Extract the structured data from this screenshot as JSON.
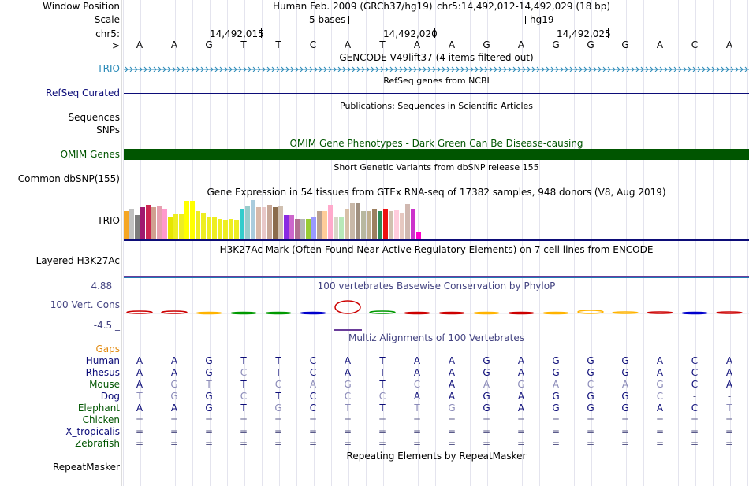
{
  "header": {
    "window_position_label": "Window Position",
    "assembly": "Human Feb. 2009 (GRCh37/hg19)",
    "position_range": "chr5:14,492,012-14,492,029 (18 bp)",
    "scale_label": "Scale",
    "scale_text": "5 bases",
    "scale_db": "hg19",
    "chrom_label": "chr5:",
    "coords": [
      "14,492,015",
      "14,492,020",
      "14,492,025"
    ],
    "strand_label": "--->",
    "bases": [
      "A",
      "A",
      "G",
      "T",
      "T",
      "C",
      "A",
      "T",
      "A",
      "A",
      "G",
      "A",
      "G",
      "G",
      "G",
      "A",
      "C",
      "A"
    ]
  },
  "tracks": {
    "gencode": {
      "label": "TRIO",
      "title": "GENCODE V49lift37 (4 items filtered out)",
      "color": "#2a8ab8"
    },
    "refseq": {
      "label": "RefSeq Curated",
      "title": "RefSeq genes from NCBI",
      "color": "#0c0c78"
    },
    "publications": {
      "label": "Sequences",
      "title": "Publications: Sequences in Scientific Articles"
    },
    "snps_label": "SNPs",
    "omim": {
      "label": "OMIM Genes",
      "title": "OMIM Gene Phenotypes - Dark Green Can Be Disease-causing",
      "color": "#005500"
    },
    "dbsnp": {
      "label": "Common dbSNP(155)",
      "title": "Short Genetic Variants from dbSNP release 155"
    },
    "gtex": {
      "label": "TRIO",
      "title": "Gene Expression in 54 tissues from GTEx RNA-seq of 17382 samples, 948 donors (V8, Aug 2019)"
    },
    "h3k27ac": {
      "label": "Layered H3K27Ac",
      "title": "H3K27Ac Mark (Often Found Near Active Regulatory Elements) on 7 cell lines from ENCODE"
    },
    "phylop": {
      "label": "100 Vert. Cons",
      "title": "100 vertebrates Basewise Conservation by PhyloP",
      "max": "4.88 _",
      "min": "-4.5 _",
      "color": "#434381"
    },
    "multiz": {
      "title": "Multiz Alignments of 100 Vertebrates",
      "gaps_label": "Gaps"
    },
    "repeatmasker": {
      "label": "RepeatMasker",
      "title": "Repeating Elements by RepeatMasker"
    }
  },
  "alignment": [
    {
      "species": "Human",
      "color": "#0c0c78",
      "seq": [
        "A",
        "A",
        "G",
        "T",
        "T",
        "C",
        "A",
        "T",
        "A",
        "A",
        "G",
        "A",
        "G",
        "G",
        "G",
        "A",
        "C",
        "A"
      ]
    },
    {
      "species": "Rhesus",
      "color": "#0c0c78",
      "seq": [
        "A",
        "A",
        "G",
        "C",
        "T",
        "C",
        "A",
        "T",
        "A",
        "A",
        "G",
        "A",
        "G",
        "G",
        "G",
        "A",
        "C",
        "A"
      ]
    },
    {
      "species": "Mouse",
      "color": "#005500",
      "seq": [
        "A",
        "G",
        "T",
        "T",
        "C",
        "A",
        "G",
        "T",
        "C",
        "A",
        "A",
        "G",
        "A",
        "C",
        "A",
        "G",
        "C",
        "A"
      ]
    },
    {
      "species": "Dog",
      "color": "#0c0c78",
      "seq": [
        "T",
        "G",
        "G",
        "C",
        "T",
        "C",
        "C",
        "C",
        "A",
        "A",
        "G",
        "A",
        "G",
        "G",
        "G",
        "C",
        "-",
        "-"
      ]
    },
    {
      "species": "Elephant",
      "color": "#005500",
      "seq": [
        "A",
        "A",
        "G",
        "T",
        "G",
        "C",
        "T",
        "T",
        "T",
        "G",
        "G",
        "A",
        "G",
        "G",
        "G",
        "A",
        "C",
        "T"
      ]
    },
    {
      "species": "Chicken",
      "color": "#005500",
      "seq": [
        "=",
        "=",
        "=",
        "=",
        "=",
        "=",
        "=",
        "=",
        "=",
        "=",
        "=",
        "=",
        "=",
        "=",
        "=",
        "=",
        "=",
        "="
      ]
    },
    {
      "species": "X_tropicalis",
      "color": "#0c0c78",
      "seq": [
        "=",
        "=",
        "=",
        "=",
        "=",
        "=",
        "=",
        "=",
        "=",
        "=",
        "=",
        "=",
        "=",
        "=",
        "=",
        "=",
        "=",
        "="
      ]
    },
    {
      "species": "Zebrafish",
      "color": "#005500",
      "seq": [
        "=",
        "=",
        "=",
        "=",
        "=",
        "=",
        "=",
        "=",
        "=",
        "=",
        "=",
        "=",
        "=",
        "=",
        "=",
        "=",
        "=",
        "="
      ]
    }
  ],
  "gtex_values": [
    0.7,
    0.75,
    0.6,
    0.8,
    0.85,
    0.8,
    0.82,
    0.75,
    0.55,
    0.62,
    0.62,
    0.95,
    0.95,
    0.7,
    0.65,
    0.55,
    0.55,
    0.5,
    0.48,
    0.5,
    0.48,
    0.75,
    0.82,
    0.98,
    0.8,
    0.8,
    0.85,
    0.8,
    0.82,
    0.6,
    0.6,
    0.5,
    0.5,
    0.5,
    0.55,
    0.7,
    0.7,
    0.85,
    0.55,
    0.55,
    0.75,
    0.9,
    0.9,
    0.7,
    0.7,
    0.75,
    0.7,
    0.75,
    0.7,
    0.72,
    0.65,
    0.88,
    0.75,
    0.18
  ],
  "gtex_colors": [
    "#f5a623",
    "#c0c0c0",
    "#7c7c7c",
    "#a0196f",
    "#cd2650",
    "#d0a090",
    "#e6a0b0",
    "#ff99cc",
    "#e6e600",
    "#eeee22",
    "#eeee22",
    "#ffff00",
    "#ffff00",
    "#eeee22",
    "#eeee22",
    "#eeee22",
    "#eeee22",
    "#eeee22",
    "#eeee22",
    "#eeee22",
    "#eeee22",
    "#33cccc",
    "#99cccc",
    "#aaccdd",
    "#d8b8a8",
    "#e8c8c8",
    "#c8a898",
    "#8b6c4c",
    "#d0c0b0",
    "#8a2be2",
    "#cc66cc",
    "#b07090",
    "#b5b5b5",
    "#99cc33",
    "#9999ff",
    "#b8a090",
    "#ffcc99",
    "#ffaacc",
    "#d8d8c8",
    "#b8e8b8",
    "#d8c0a8",
    "#c8b8a8",
    "#a09080",
    "#b8b8a0",
    "#c0b090",
    "#9c8060",
    "#2e8b57",
    "#ee1111",
    "#d0c0b0",
    "#ffccdd",
    "#e6c8c0",
    "#d0b8b0",
    "#cc33cc",
    "#ff00cc"
  ]
}
